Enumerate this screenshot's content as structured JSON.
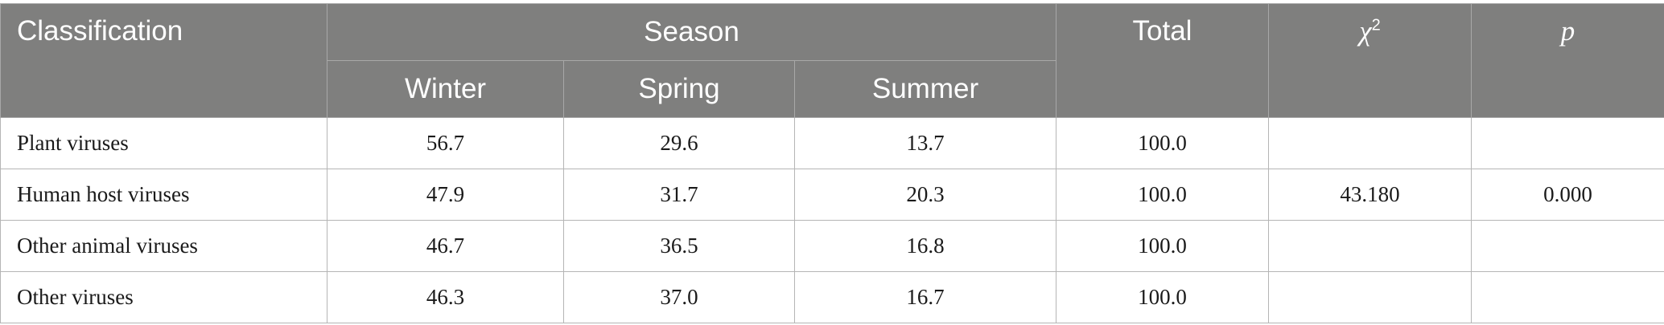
{
  "table": {
    "header": {
      "classification": "Classification",
      "season": "Season",
      "seasons": [
        "Winter",
        "Spring",
        "Summer"
      ],
      "total": "Total",
      "chi_symbol": "χ",
      "chi_sup": "2",
      "p": "p"
    },
    "rows": [
      {
        "label": "Plant viruses",
        "values": [
          "56.7",
          "29.6",
          "13.7",
          "100.0"
        ]
      },
      {
        "label": "Human host viruses",
        "values": [
          "47.9",
          "31.7",
          "20.3",
          "100.0"
        ],
        "chi": "43.180",
        "p": "0.000"
      },
      {
        "label": "Other animal viruses",
        "values": [
          "46.7",
          "36.5",
          "16.8",
          "100.0"
        ]
      },
      {
        "label": "Other viruses",
        "values": [
          "46.3",
          "37.0",
          "16.7",
          "100.0"
        ]
      }
    ]
  }
}
